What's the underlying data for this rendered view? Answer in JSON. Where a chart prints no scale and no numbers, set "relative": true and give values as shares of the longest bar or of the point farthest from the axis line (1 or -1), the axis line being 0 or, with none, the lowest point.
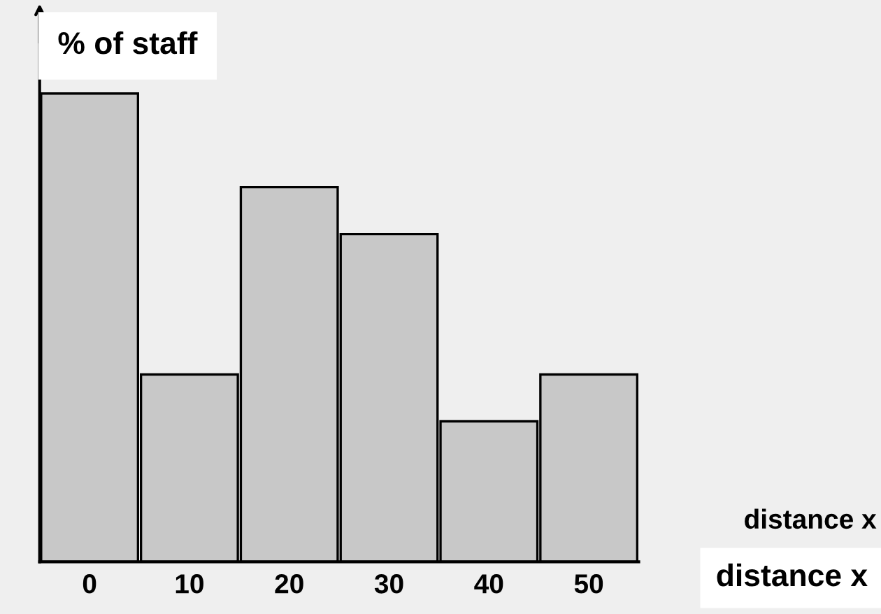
{
  "chart_data": {
    "type": "bar",
    "relative": true,
    "ylabel": "% of staff",
    "xlabel": "distance x",
    "annotations": [
      "distance x"
    ],
    "categories": [
      "0",
      "10",
      "20",
      "30",
      "40",
      "50"
    ],
    "values": [
      1,
      0.4,
      0.8,
      0.7,
      0.3,
      0.4
    ],
    "color": "#c8c8c8",
    "grid": false,
    "legend": false
  }
}
